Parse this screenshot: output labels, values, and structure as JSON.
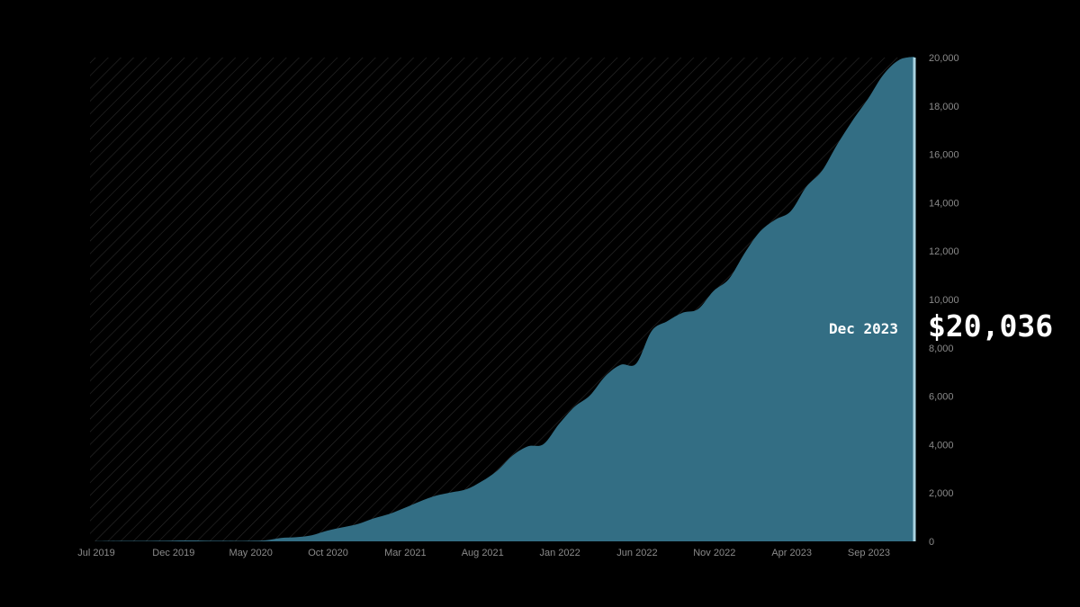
{
  "chart_data": {
    "type": "area",
    "x": [
      "Jul 2019",
      "Aug 2019",
      "Sep 2019",
      "Oct 2019",
      "Nov 2019",
      "Dec 2019",
      "Jan 2020",
      "Feb 2020",
      "Mar 2020",
      "Apr 2020",
      "May 2020",
      "Jun 2020",
      "Jul 2020",
      "Aug 2020",
      "Sep 2020",
      "Oct 2020",
      "Nov 2020",
      "Dec 2020",
      "Jan 2021",
      "Feb 2021",
      "Mar 2021",
      "Apr 2021",
      "May 2021",
      "Jun 2021",
      "Jul 2021",
      "Aug 2021",
      "Sep 2021",
      "Oct 2021",
      "Nov 2021",
      "Dec 2021",
      "Jan 2022",
      "Feb 2022",
      "Mar 2022",
      "Apr 2022",
      "May 2022",
      "Jun 2022",
      "Jul 2022",
      "Aug 2022",
      "Sep 2022",
      "Oct 2022",
      "Nov 2022",
      "Dec 2022",
      "Jan 2023",
      "Feb 2023",
      "Mar 2023",
      "Apr 2023",
      "May 2023",
      "Jun 2023",
      "Jul 2023",
      "Aug 2023",
      "Sep 2023",
      "Oct 2023",
      "Nov 2023",
      "Dec 2023"
    ],
    "series": [
      {
        "values": [
          10,
          15,
          20,
          20,
          25,
          30,
          35,
          30,
          25,
          20,
          25,
          40,
          140,
          170,
          250,
          440,
          580,
          720,
          950,
          1130,
          1380,
          1650,
          1880,
          2020,
          2150,
          2480,
          2920,
          3550,
          3930,
          4020,
          4850,
          5560,
          6030,
          6830,
          7300,
          7350,
          8700,
          9100,
          9450,
          9600,
          10350,
          10850,
          11900,
          12800,
          13300,
          13650,
          14650,
          15300,
          16400,
          17400,
          18300,
          19300,
          19900,
          20036
        ]
      }
    ],
    "x_ticks": [
      "Jul 2019",
      "Dec 2019",
      "May 2020",
      "Oct 2020",
      "Mar 2021",
      "Aug 2021",
      "Jan 2022",
      "Jun 2022",
      "Nov 2022",
      "Apr 2023",
      "Sep 2023"
    ],
    "y_ticks": [
      "0",
      "2,000",
      "4,000",
      "6,000",
      "8,000",
      "10,000",
      "12,000",
      "14,000",
      "16,000",
      "18,000",
      "20,000"
    ],
    "ylim": [
      0,
      20000
    ],
    "y_axis_side": "right",
    "grid": false,
    "colors": {
      "area": "#336e84",
      "hatch": "#2a2a2a",
      "background": "#000000",
      "cursor": "#a9d3e0"
    },
    "hover": {
      "date": "Dec 2023",
      "value": "$20,036"
    }
  }
}
